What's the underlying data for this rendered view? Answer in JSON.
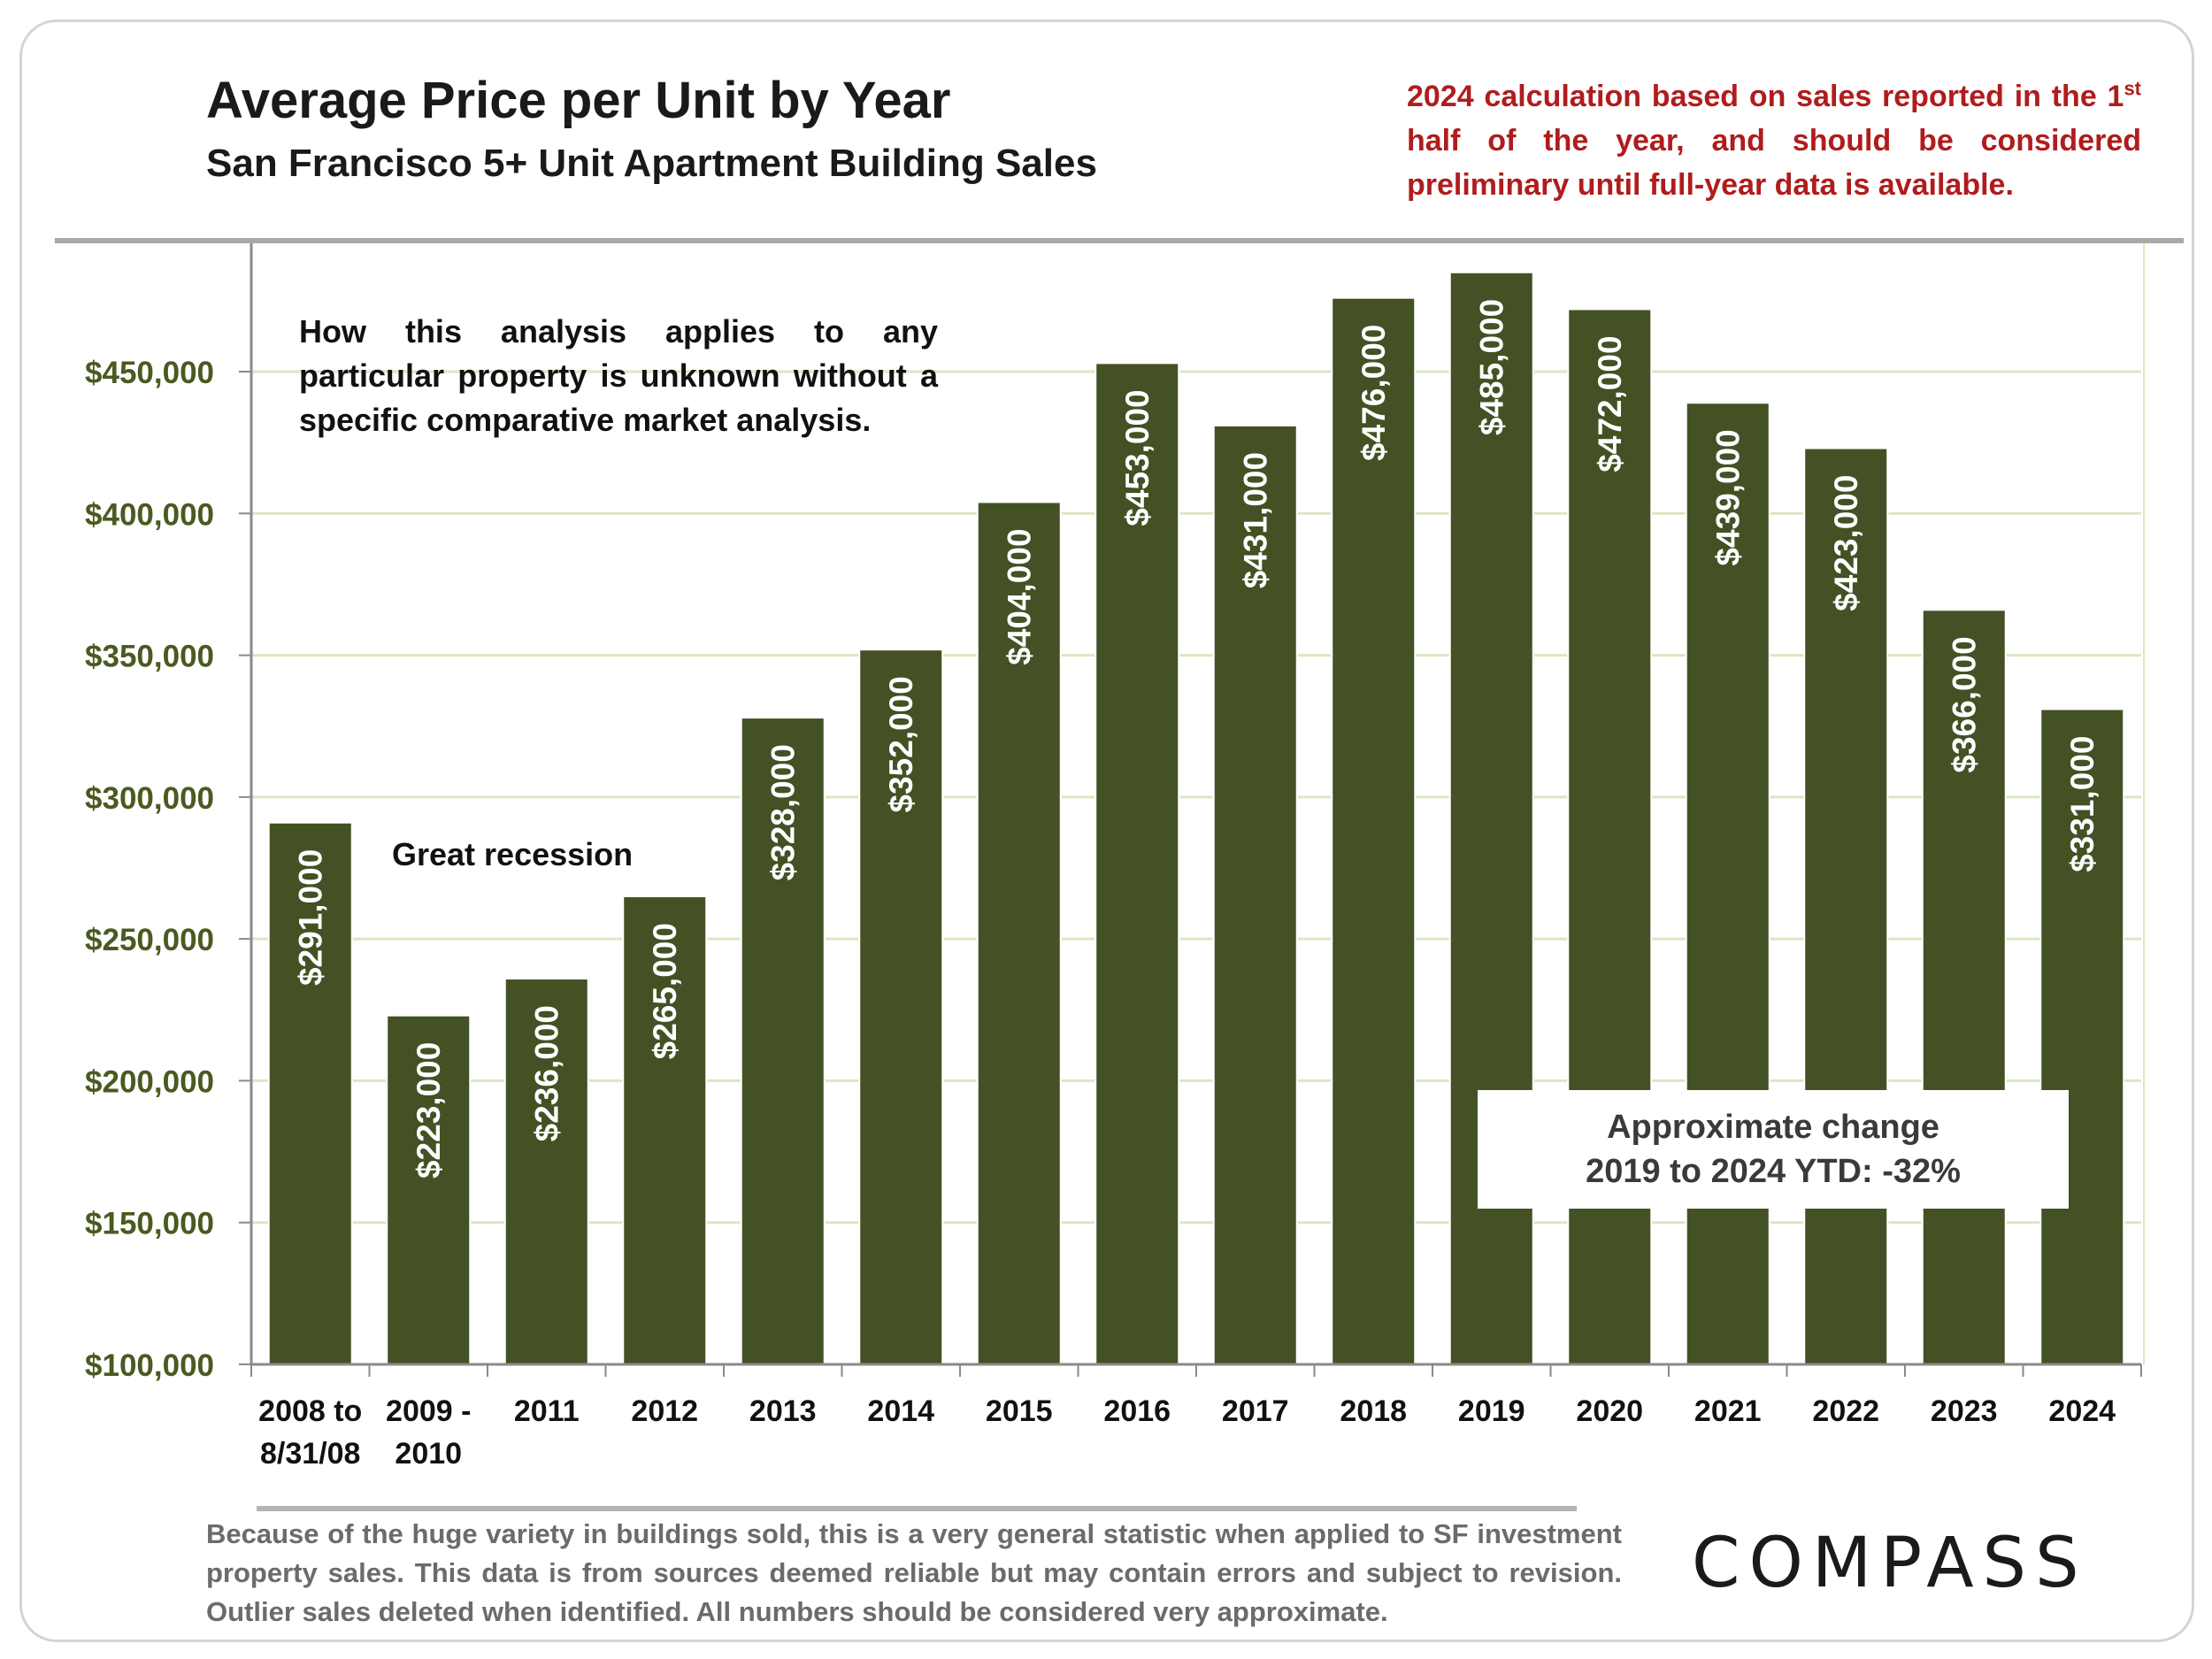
{
  "header": {
    "title": "Average Price per Unit by Year",
    "subtitle": "San Francisco 5+ Unit Apartment Building Sales",
    "note_part1": "2024 calculation based on sales reported in the 1",
    "note_sup": "st",
    "note_part2": " half of the year, and should be considered preliminary until full-year data is available."
  },
  "annotations": {
    "analysis_note": "How this analysis applies to any particular property is unknown without a specific comparative market analysis.",
    "recession_label": "Great recession",
    "change_line1": "Approximate change",
    "change_line2": "2019 to 2024 YTD: -32%"
  },
  "footer": {
    "note": "Because of the huge variety in buildings sold, this is a very general statistic when applied to SF investment property sales. This data is from sources deemed reliable but may contain errors and subject to revision. Outlier sales deleted when identified. All numbers should be considered very approximate.",
    "logo": "COMPASS"
  },
  "colors": {
    "bar": "#435124",
    "axis_label": "#4a5a20",
    "gridline": "#dde6c2",
    "note_red": "#b01c1c"
  },
  "chart_data": {
    "type": "bar",
    "categories": [
      [
        "2008 to",
        "8/31/08"
      ],
      [
        "2009 -",
        "2010"
      ],
      [
        "2011"
      ],
      [
        "2012"
      ],
      [
        "2013"
      ],
      [
        "2014"
      ],
      [
        "2015"
      ],
      [
        "2016"
      ],
      [
        "2017"
      ],
      [
        "2018"
      ],
      [
        "2019"
      ],
      [
        "2020"
      ],
      [
        "2021"
      ],
      [
        "2022"
      ],
      [
        "2023"
      ],
      [
        "2024"
      ]
    ],
    "values": [
      291000,
      223000,
      236000,
      265000,
      328000,
      352000,
      404000,
      453000,
      431000,
      476000,
      485000,
      472000,
      439000,
      423000,
      366000,
      331000
    ],
    "value_labels": [
      "$291,000",
      "$223,000",
      "$236,000",
      "$265,000",
      "$328,000",
      "$352,000",
      "$404,000",
      "$453,000",
      "$431,000",
      "$476,000",
      "$485,000",
      "$472,000",
      "$439,000",
      "$423,000",
      "$366,000",
      "$331,000"
    ],
    "yticks": [
      100000,
      150000,
      200000,
      250000,
      300000,
      350000,
      400000,
      450000
    ],
    "ytick_labels": [
      "$100,000",
      "$150,000",
      "$200,000",
      "$250,000",
      "$300,000",
      "$350,000",
      "$400,000",
      "$450,000"
    ],
    "ylim": [
      100000,
      500000
    ],
    "grid": true,
    "xlabel": "",
    "ylabel": ""
  }
}
